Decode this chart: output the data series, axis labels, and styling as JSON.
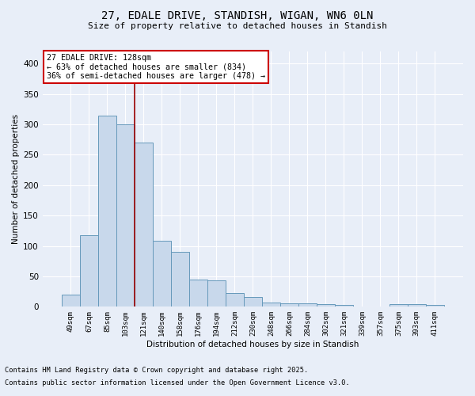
{
  "title": "27, EDALE DRIVE, STANDISH, WIGAN, WN6 0LN",
  "subtitle": "Size of property relative to detached houses in Standish",
  "xlabel": "Distribution of detached houses by size in Standish",
  "ylabel": "Number of detached properties",
  "bar_color": "#c8d8eb",
  "bar_edge_color": "#6699bb",
  "background_color": "#e8eef8",
  "grid_color": "#ffffff",
  "categories": [
    "49sqm",
    "67sqm",
    "85sqm",
    "103sqm",
    "121sqm",
    "140sqm",
    "158sqm",
    "176sqm",
    "194sqm",
    "212sqm",
    "230sqm",
    "248sqm",
    "266sqm",
    "284sqm",
    "302sqm",
    "321sqm",
    "339sqm",
    "357sqm",
    "375sqm",
    "393sqm",
    "411sqm"
  ],
  "values": [
    20,
    118,
    315,
    300,
    270,
    108,
    90,
    45,
    44,
    22,
    16,
    7,
    6,
    5,
    4,
    3,
    1,
    1,
    4,
    4,
    3
  ],
  "vline_x": 3.5,
  "vline_color": "#990000",
  "annotation_text": "27 EDALE DRIVE: 128sqm\n← 63% of detached houses are smaller (834)\n36% of semi-detached houses are larger (478) →",
  "annotation_box_color": "#ffffff",
  "annotation_box_edge": "#cc0000",
  "footer1": "Contains HM Land Registry data © Crown copyright and database right 2025.",
  "footer2": "Contains public sector information licensed under the Open Government Licence v3.0.",
  "ylim": [
    0,
    420
  ],
  "yticks": [
    0,
    50,
    100,
    150,
    200,
    250,
    300,
    350,
    400
  ]
}
